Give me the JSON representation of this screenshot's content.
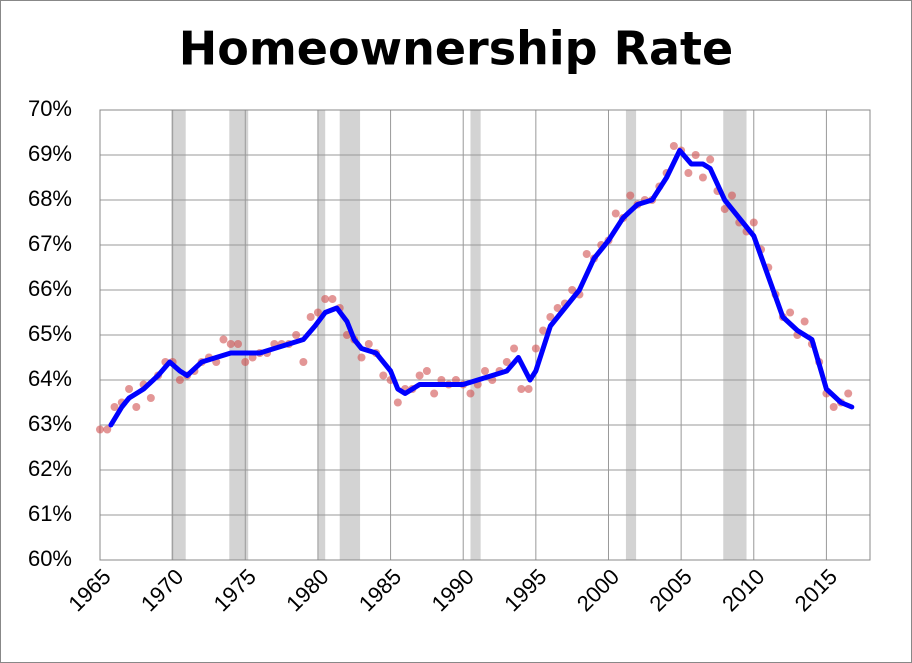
{
  "chart_data": {
    "type": "line",
    "title": "Homeownership Rate",
    "xlim": [
      1965,
      2018
    ],
    "xticks": [
      1965,
      1970,
      1975,
      1980,
      1985,
      1990,
      1995,
      2000,
      2005,
      2010,
      2015
    ],
    "ylim": [
      60,
      70
    ],
    "yticks": [
      {
        "value": 60,
        "label": "60%"
      },
      {
        "value": 61,
        "label": "61%"
      },
      {
        "value": 62,
        "label": "62%"
      },
      {
        "value": 63,
        "label": "63%"
      },
      {
        "value": 64,
        "label": "64%"
      },
      {
        "value": 65,
        "label": "65%"
      },
      {
        "value": 66,
        "label": "66%"
      },
      {
        "value": 67,
        "label": "67%"
      },
      {
        "value": 68,
        "label": "68%"
      },
      {
        "value": 69,
        "label": "69%"
      },
      {
        "value": 70,
        "label": "70%"
      }
    ],
    "grid": true,
    "shaded_ranges": [
      [
        1969.9,
        1970.9
      ],
      [
        1973.9,
        1975.2
      ],
      [
        1980.0,
        1980.5
      ],
      [
        1981.5,
        1982.9
      ],
      [
        1990.5,
        1991.2
      ],
      [
        2001.2,
        2001.9
      ],
      [
        2007.9,
        2009.5
      ]
    ],
    "shade_color": "#d3d3d3",
    "series": [
      {
        "style": "dots",
        "color": "#d05050",
        "x": [
          1965,
          1965.5,
          1966,
          1966.5,
          1967,
          1967.5,
          1968,
          1968.5,
          1969,
          1969.5,
          1970,
          1970.5,
          1971,
          1971.5,
          1972,
          1972.5,
          1973,
          1973.5,
          1974,
          1974.5,
          1975,
          1975.5,
          1976,
          1976.5,
          1977,
          1977.5,
          1978,
          1978.5,
          1979,
          1979.5,
          1980,
          1980.5,
          1981,
          1981.5,
          1982,
          1982.5,
          1983,
          1983.5,
          1984,
          1984.5,
          1985,
          1985.5,
          1986,
          1986.5,
          1987,
          1987.5,
          1988,
          1988.5,
          1989,
          1989.5,
          1990,
          1990.5,
          1991,
          1991.5,
          1992,
          1992.5,
          1993,
          1993.5,
          1994,
          1994.5,
          1995,
          1995.5,
          1996,
          1996.5,
          1997,
          1997.5,
          1998,
          1998.5,
          1999,
          1999.5,
          2000,
          2000.5,
          2001,
          2001.5,
          2002,
          2002.5,
          2003,
          2003.5,
          2004,
          2004.5,
          2005,
          2005.5,
          2006,
          2006.5,
          2007,
          2007.5,
          2008,
          2008.5,
          2009,
          2009.5,
          2010,
          2010.5,
          2011,
          2011.5,
          2012,
          2012.5,
          2013,
          2013.5,
          2014,
          2014.5,
          2015,
          2015.5,
          2016,
          2016.5
        ],
        "values": [
          62.9,
          62.9,
          63.4,
          63.5,
          63.8,
          63.4,
          63.9,
          63.6,
          64.1,
          64.4,
          64.4,
          64.0,
          64.1,
          64.2,
          64.4,
          64.5,
          64.4,
          64.9,
          64.8,
          64.8,
          64.4,
          64.5,
          64.6,
          64.6,
          64.8,
          64.8,
          64.8,
          65.0,
          64.4,
          65.4,
          65.5,
          65.8,
          65.8,
          65.6,
          65.0,
          64.9,
          64.5,
          64.8,
          64.6,
          64.1,
          64.0,
          63.5,
          63.8,
          63.8,
          64.1,
          64.2,
          63.7,
          64.0,
          63.9,
          64.0,
          63.9,
          63.7,
          63.9,
          64.2,
          64.0,
          64.2,
          64.4,
          64.7,
          63.8,
          63.8,
          64.7,
          65.1,
          65.4,
          65.6,
          65.7,
          66.0,
          65.9,
          66.8,
          66.7,
          67.0,
          67.1,
          67.7,
          67.6,
          68.1,
          67.9,
          68.0,
          68.0,
          68.3,
          68.6,
          69.2,
          69.1,
          68.6,
          69.0,
          68.5,
          68.9,
          68.2,
          67.8,
          68.1,
          67.5,
          67.3,
          67.5,
          66.9,
          66.5,
          65.9,
          65.4,
          65.5,
          65.0,
          65.3,
          64.8,
          64.4,
          63.7,
          63.4,
          63.5,
          63.7
        ]
      },
      {
        "style": "line",
        "color": "#0000ff",
        "x": [
          1965.75,
          1966.5,
          1967,
          1968,
          1969,
          1969.8,
          1970.5,
          1971,
          1972,
          1973,
          1974,
          1974.8,
          1975.5,
          1976,
          1977,
          1978,
          1979,
          1979.8,
          1980.5,
          1981.3,
          1982,
          1982.5,
          1983,
          1984,
          1985,
          1985.5,
          1986,
          1987,
          1988,
          1989,
          1990,
          1991,
          1992,
          1993,
          1993.8,
          1994.6,
          1995,
          1996,
          1997,
          1998,
          1999,
          2000,
          2001,
          2002,
          2003,
          2004,
          2004.9,
          2005.7,
          2006.5,
          2007,
          2008,
          2009,
          2010,
          2011,
          2012,
          2013,
          2014,
          2015,
          2016,
          2016.75
        ],
        "values": [
          63.0,
          63.4,
          63.6,
          63.8,
          64.1,
          64.4,
          64.2,
          64.1,
          64.4,
          64.5,
          64.6,
          64.6,
          64.6,
          64.6,
          64.7,
          64.8,
          64.9,
          65.2,
          65.5,
          65.6,
          65.3,
          64.9,
          64.7,
          64.6,
          64.2,
          63.8,
          63.7,
          63.9,
          63.9,
          63.9,
          63.9,
          64.0,
          64.1,
          64.2,
          64.5,
          64.0,
          64.2,
          65.2,
          65.6,
          66.0,
          66.7,
          67.1,
          67.6,
          67.9,
          68.0,
          68.5,
          69.1,
          68.8,
          68.8,
          68.7,
          68.0,
          67.6,
          67.2,
          66.3,
          65.4,
          65.1,
          64.9,
          63.8,
          63.5,
          63.4
        ]
      }
    ]
  }
}
